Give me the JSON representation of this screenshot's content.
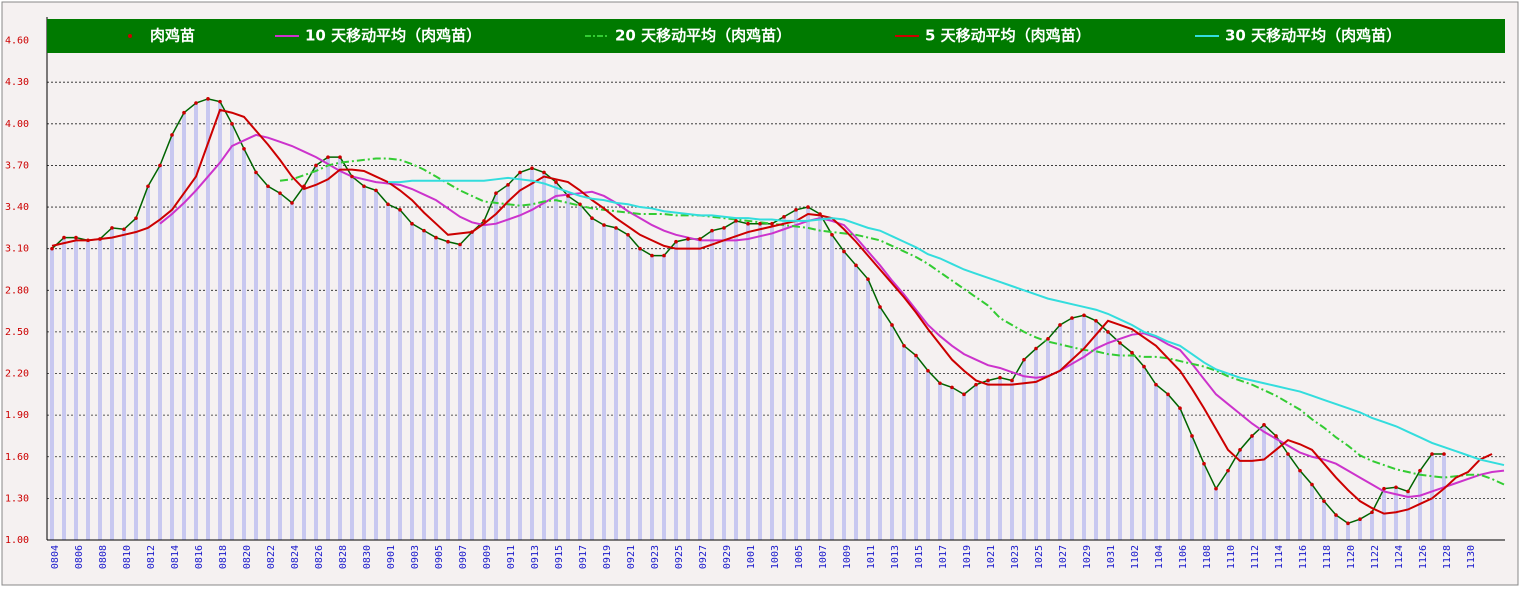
{
  "chart_data": {
    "type": "combo",
    "categories": [
      "0804",
      null,
      "0806",
      null,
      "0808",
      null,
      "0810",
      null,
      "0812",
      null,
      "0814",
      null,
      "0816",
      null,
      "0818",
      null,
      "0820",
      null,
      "0822",
      null,
      "0824",
      null,
      "0826",
      null,
      "0828",
      null,
      "0830",
      null,
      "0901",
      null,
      "0903",
      null,
      "0905",
      null,
      "0907",
      null,
      "0909",
      null,
      "0911",
      null,
      "0913",
      null,
      "0915",
      null,
      "0917",
      null,
      "0919",
      null,
      "0921",
      null,
      "0923",
      null,
      "0925",
      null,
      "0927",
      null,
      "0929",
      null,
      "1001",
      null,
      "1003",
      null,
      "1005",
      null,
      "1007",
      null,
      "1009",
      null,
      "1011",
      null,
      "1013",
      null,
      "1015",
      null,
      "1017",
      null,
      "1019",
      null,
      "1021",
      null,
      "1023",
      null,
      "1025",
      null,
      "1027",
      null,
      "1029",
      null,
      "1031",
      null,
      "1102",
      null,
      "1104",
      null,
      "1106",
      null,
      "1108",
      null,
      "1110",
      null,
      "1112",
      null,
      "1114",
      null,
      "1116",
      null,
      "1118",
      null,
      "1120",
      null,
      "1122",
      null,
      "1124",
      null,
      "1126",
      null,
      "1128",
      null,
      "1130",
      null,
      null,
      null
    ],
    "series": [
      {
        "name": "肉鸡苗",
        "color": "#006400",
        "marker_color": "#cc0000",
        "bar_color": "#c8c8f0",
        "values": [
          3.1,
          3.18,
          3.18,
          3.16,
          3.17,
          3.25,
          3.24,
          3.32,
          3.55,
          3.7,
          3.92,
          4.08,
          4.15,
          4.18,
          4.16,
          4.0,
          3.82,
          3.65,
          3.55,
          3.5,
          3.43,
          3.55,
          3.7,
          3.76,
          3.76,
          3.62,
          3.55,
          3.52,
          3.42,
          3.38,
          3.28,
          3.23,
          3.18,
          3.15,
          3.13,
          3.22,
          3.3,
          3.5,
          3.56,
          3.65,
          3.68,
          3.65,
          3.58,
          3.48,
          3.42,
          3.32,
          3.27,
          3.25,
          3.2,
          3.1,
          3.05,
          3.05,
          3.15,
          3.17,
          3.17,
          3.23,
          3.25,
          3.3,
          3.28,
          3.28,
          3.28,
          3.33,
          3.38,
          3.4,
          3.35,
          3.2,
          3.08,
          2.98,
          2.88,
          2.68,
          2.55,
          2.4,
          2.33,
          2.22,
          2.13,
          2.1,
          2.05,
          2.12,
          2.15,
          2.17,
          2.15,
          2.3,
          2.38,
          2.45,
          2.55,
          2.6,
          2.62,
          2.58,
          2.5,
          2.42,
          2.35,
          2.25,
          2.12,
          2.05,
          1.95,
          1.75,
          1.55,
          1.37,
          1.5,
          1.65,
          1.75,
          1.83,
          1.75,
          1.62,
          1.5,
          1.4,
          1.28,
          1.18,
          1.12,
          1.15,
          1.2,
          1.37,
          1.38,
          1.35,
          1.5,
          1.62,
          1.62,
          null,
          null,
          null,
          null,
          null
        ]
      },
      {
        "name": "10 天移动平均（肉鸡苗）",
        "color": "#cc33cc",
        "values": [
          null,
          null,
          null,
          null,
          null,
          null,
          null,
          null,
          null,
          3.28,
          3.35,
          3.43,
          3.52,
          3.62,
          3.72,
          3.84,
          3.88,
          3.92,
          3.9,
          3.87,
          3.84,
          3.8,
          3.76,
          3.71,
          3.66,
          3.62,
          3.6,
          3.58,
          3.57,
          3.56,
          3.53,
          3.49,
          3.45,
          3.39,
          3.33,
          3.29,
          3.27,
          3.28,
          3.31,
          3.34,
          3.38,
          3.43,
          3.48,
          3.49,
          3.5,
          3.51,
          3.48,
          3.43,
          3.37,
          3.32,
          3.27,
          3.23,
          3.2,
          3.18,
          3.16,
          3.16,
          3.16,
          3.16,
          3.17,
          3.19,
          3.21,
          3.24,
          3.27,
          3.3,
          3.32,
          3.3,
          3.27,
          3.18,
          3.08,
          2.98,
          2.87,
          2.77,
          2.66,
          2.55,
          2.47,
          2.4,
          2.34,
          2.3,
          2.26,
          2.24,
          2.21,
          2.18,
          2.17,
          2.18,
          2.22,
          2.27,
          2.32,
          2.38,
          2.42,
          2.45,
          2.48,
          2.49,
          2.46,
          2.41,
          2.37,
          2.27,
          2.16,
          2.05,
          1.98,
          1.91,
          1.84,
          1.78,
          1.73,
          1.68,
          1.63,
          1.6,
          1.58,
          1.55,
          1.5,
          1.45,
          1.4,
          1.35,
          1.33,
          1.31,
          1.32,
          1.35,
          1.38,
          1.41,
          1.44,
          1.47,
          1.49,
          1.5
        ]
      },
      {
        "name": "20 天移动平均（肉鸡苗）",
        "color": "#33cc33",
        "dash": true,
        "values": [
          null,
          null,
          null,
          null,
          null,
          null,
          null,
          null,
          null,
          null,
          null,
          null,
          null,
          null,
          null,
          null,
          null,
          null,
          null,
          3.59,
          3.6,
          3.63,
          3.66,
          3.7,
          3.72,
          3.73,
          3.74,
          3.75,
          3.75,
          3.74,
          3.71,
          3.67,
          3.62,
          3.57,
          3.52,
          3.48,
          3.44,
          3.43,
          3.42,
          3.41,
          3.42,
          3.44,
          3.45,
          3.43,
          3.41,
          3.39,
          3.38,
          3.37,
          3.36,
          3.35,
          3.35,
          3.35,
          3.34,
          3.34,
          3.34,
          3.33,
          3.32,
          3.31,
          3.3,
          3.29,
          3.28,
          3.27,
          3.26,
          3.25,
          3.23,
          3.22,
          3.21,
          3.2,
          3.18,
          3.16,
          3.12,
          3.08,
          3.04,
          2.99,
          2.93,
          2.87,
          2.81,
          2.75,
          2.69,
          2.6,
          2.55,
          2.5,
          2.46,
          2.43,
          2.41,
          2.39,
          2.37,
          2.36,
          2.34,
          2.33,
          2.33,
          2.32,
          2.32,
          2.31,
          2.29,
          2.27,
          2.25,
          2.22,
          2.18,
          2.15,
          2.12,
          2.08,
          2.04,
          1.99,
          1.94,
          1.87,
          1.81,
          1.74,
          1.68,
          1.61,
          1.57,
          1.54,
          1.51,
          1.49,
          1.47,
          1.46,
          1.45,
          1.46,
          1.47,
          1.47,
          1.44,
          1.4
        ]
      },
      {
        "name": "5 天移动平均（肉鸡苗）",
        "color": "#cc0000",
        "values": [
          3.12,
          3.14,
          3.16,
          3.16,
          3.17,
          3.18,
          3.2,
          3.22,
          3.25,
          3.31,
          3.38,
          3.5,
          3.62,
          3.86,
          4.1,
          4.08,
          4.05,
          3.95,
          3.85,
          3.74,
          3.62,
          3.53,
          3.56,
          3.6,
          3.67,
          3.67,
          3.66,
          3.62,
          3.58,
          3.52,
          3.45,
          3.36,
          3.28,
          3.2,
          3.21,
          3.22,
          3.28,
          3.35,
          3.44,
          3.52,
          3.57,
          3.62,
          3.6,
          3.58,
          3.52,
          3.45,
          3.39,
          3.32,
          3.26,
          3.2,
          3.16,
          3.12,
          3.1,
          3.1,
          3.1,
          3.13,
          3.16,
          3.19,
          3.22,
          3.24,
          3.26,
          3.28,
          3.3,
          3.35,
          3.34,
          3.32,
          3.24,
          3.15,
          3.05,
          2.95,
          2.85,
          2.75,
          2.64,
          2.52,
          2.41,
          2.3,
          2.22,
          2.15,
          2.12,
          2.12,
          2.12,
          2.13,
          2.14,
          2.18,
          2.22,
          2.3,
          2.38,
          2.48,
          2.58,
          2.55,
          2.52,
          2.46,
          2.4,
          2.31,
          2.22,
          2.09,
          1.95,
          1.8,
          1.65,
          1.57,
          1.57,
          1.58,
          1.65,
          1.72,
          1.69,
          1.65,
          1.55,
          1.45,
          1.36,
          1.28,
          1.23,
          1.19,
          1.2,
          1.22,
          1.26,
          1.3,
          1.37,
          1.45,
          1.49,
          1.58,
          1.62,
          null
        ]
      },
      {
        "name": "30 天移动平均（肉鸡苗）",
        "color": "#33dddd",
        "values": [
          null,
          null,
          null,
          null,
          null,
          null,
          null,
          null,
          null,
          null,
          null,
          null,
          null,
          null,
          null,
          null,
          null,
          null,
          null,
          null,
          null,
          null,
          null,
          null,
          null,
          null,
          null,
          null,
          3.58,
          3.58,
          3.59,
          3.59,
          3.59,
          3.59,
          3.59,
          3.59,
          3.59,
          3.6,
          3.61,
          3.6,
          3.59,
          3.57,
          3.54,
          3.51,
          3.48,
          3.46,
          3.45,
          3.43,
          3.42,
          3.4,
          3.39,
          3.37,
          3.36,
          3.35,
          3.34,
          3.34,
          3.33,
          3.32,
          3.32,
          3.31,
          3.31,
          3.3,
          3.3,
          3.3,
          3.31,
          3.32,
          3.31,
          3.28,
          3.25,
          3.23,
          3.19,
          3.15,
          3.11,
          3.06,
          3.03,
          2.99,
          2.95,
          2.92,
          2.89,
          2.86,
          2.83,
          2.8,
          2.77,
          2.74,
          2.72,
          2.7,
          2.68,
          2.66,
          2.63,
          2.59,
          2.55,
          2.5,
          2.47,
          2.43,
          2.4,
          2.34,
          2.28,
          2.23,
          2.2,
          2.17,
          2.15,
          2.13,
          2.11,
          2.09,
          2.07,
          2.04,
          2.01,
          1.98,
          1.95,
          1.92,
          1.88,
          1.85,
          1.82,
          1.78,
          1.74,
          1.7,
          1.67,
          1.64,
          1.61,
          1.58,
          1.56,
          1.54
        ]
      }
    ],
    "ylim": [
      1,
      4.77
    ],
    "yticks": [
      {
        "value": 1,
        "label": "1.00"
      },
      {
        "value": 1.3,
        "label": "1.30"
      },
      {
        "value": 1.6,
        "label": "1.60"
      },
      {
        "value": 1.9,
        "label": "1.90"
      },
      {
        "value": 2.2,
        "label": "2.20"
      },
      {
        "value": 2.5,
        "label": "2.50"
      },
      {
        "value": 2.8,
        "label": "2.80"
      },
      {
        "value": 3.1,
        "label": "3.10"
      },
      {
        "value": 3.4,
        "label": "3.40"
      },
      {
        "value": 3.7,
        "label": "3.70"
      },
      {
        "value": 4,
        "label": "4.00"
      },
      {
        "value": 4.3,
        "label": "4.30"
      },
      {
        "value": 4.6,
        "label": "4.60"
      }
    ],
    "grid": true,
    "legend": "top",
    "legend_color": "#007a00"
  }
}
